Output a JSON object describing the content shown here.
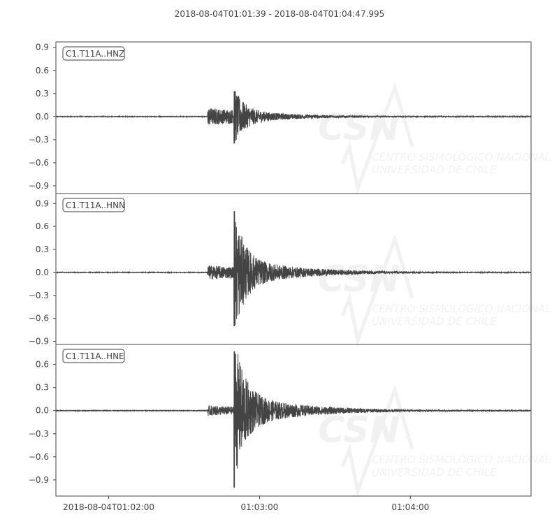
{
  "chart_data": {
    "type": "line",
    "title": "2018-08-04T01:01:39  -  2018-08-04T01:04:47.995",
    "x_range": [
      "2018-08-04T01:01:39",
      "2018-08-04T01:04:47.995"
    ],
    "x_ticks": [
      {
        "time": "2018-08-04T01:02:00",
        "label": "2018-08-04T01:02:00"
      },
      {
        "time": "2018-08-04T01:03:00",
        "label": "01:03:00"
      },
      {
        "time": "2018-08-04T01:04:00",
        "label": "01:04:00"
      }
    ],
    "line_color": "#444444",
    "grid": false,
    "watermark": {
      "logo": "CSN",
      "line1": "CENTRO SISMOLÓGICO NACIONAL",
      "line2": "UNIVERSIDAD DE CHILE"
    },
    "traces": [
      {
        "name": "C1.T11A..HNZ",
        "ylim": [
          -1.0,
          0.97
        ],
        "y_ticks": [
          "0.9",
          "0.6",
          "0.3",
          "0.0",
          "−0.3",
          "−0.6",
          "−0.9"
        ],
        "p_onset": "2018-08-04T01:02:39.3",
        "s_onset": "2018-08-04T01:02:49.8",
        "p_amplitude": 0.12,
        "peak_max": 0.33,
        "peak_min": -0.35
      },
      {
        "name": "C1.T11A..HNN",
        "ylim": [
          -0.94,
          1.03
        ],
        "y_ticks": [
          "0.9",
          "0.6",
          "0.3",
          "0.0",
          "−0.3",
          "−0.6",
          "−0.9"
        ],
        "p_onset": "2018-08-04T01:02:39.3",
        "s_onset": "2018-08-04T01:02:49.8",
        "p_amplitude": 0.1,
        "peak_max": 0.8,
        "peak_min": -0.7
      },
      {
        "name": "C1.T11A..HNE",
        "ylim": [
          -1.11,
          0.86
        ],
        "y_ticks": [
          "0.6",
          "0.3",
          "0.0",
          "−0.3",
          "−0.6",
          "−0.9"
        ],
        "p_onset": "2018-08-04T01:02:39.3",
        "s_onset": "2018-08-04T01:02:49.8",
        "p_amplitude": 0.07,
        "peak_max": 0.77,
        "peak_min": -1.0
      }
    ]
  }
}
